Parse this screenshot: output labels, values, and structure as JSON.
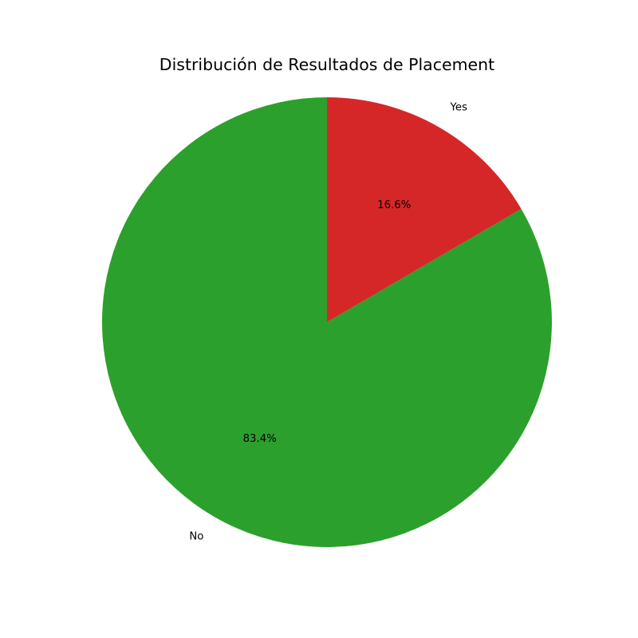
{
  "chart_data": {
    "type": "pie",
    "title": "Distribución de Resultados de Placement",
    "categories": [
      "Yes",
      "No"
    ],
    "values": [
      16.6,
      83.4
    ],
    "colors": [
      "#d62728",
      "#2ca02c"
    ],
    "value_labels": [
      "16.6%",
      "83.4%"
    ],
    "start": "top",
    "direction": "clockwise",
    "legend": "none"
  }
}
